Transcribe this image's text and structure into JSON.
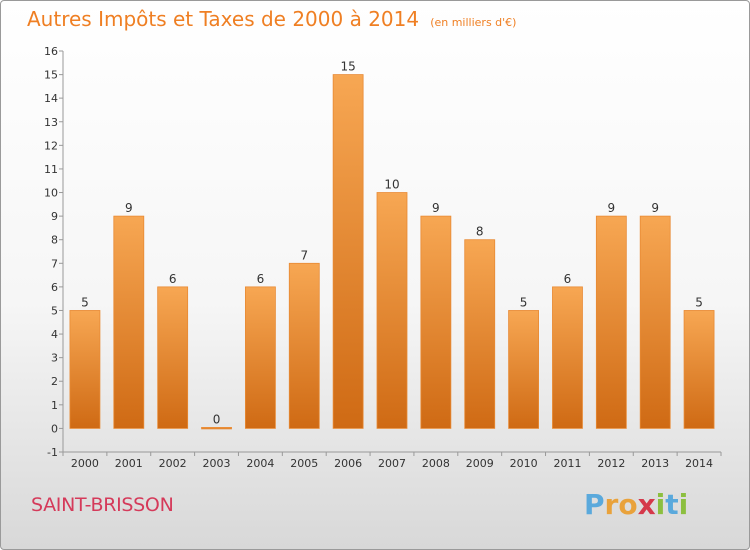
{
  "chart_data": {
    "type": "bar",
    "title": "Autres Impôts et Taxes de 2000 à 2014",
    "subtitle": "(en milliers d'€)",
    "xlabel": "",
    "ylabel": "",
    "categories": [
      "2000",
      "2001",
      "2002",
      "2003",
      "2004",
      "2005",
      "2006",
      "2007",
      "2008",
      "2009",
      "2010",
      "2011",
      "2012",
      "2013",
      "2014"
    ],
    "values": [
      5,
      9,
      6,
      0,
      6,
      7,
      15,
      10,
      9,
      8,
      5,
      6,
      9,
      9,
      5
    ],
    "data_labels": [
      "5",
      "9",
      "6",
      "0",
      "6",
      "7",
      "15",
      "10",
      "9",
      "8",
      "5",
      "6",
      "9",
      "9",
      "5"
    ],
    "ylim": [
      -1,
      16
    ],
    "yticks": [
      -1,
      0,
      1,
      2,
      3,
      4,
      5,
      6,
      7,
      8,
      9,
      10,
      11,
      12,
      13,
      14,
      15,
      16
    ],
    "grid": false,
    "legend": "none",
    "bar_color": "#f08a2c"
  },
  "footer": {
    "commune": "SAINT-BRISSON",
    "logo_letters": [
      {
        "char": "P",
        "color": "#5aa9dc"
      },
      {
        "char": "r",
        "color": "#e9a23b"
      },
      {
        "char": "o",
        "color": "#e9a23b"
      },
      {
        "char": "x",
        "color": "#d5384a"
      },
      {
        "char": "i",
        "color": "#8cbf3f"
      },
      {
        "char": "t",
        "color": "#5aa9dc"
      },
      {
        "char": "i",
        "color": "#8cbf3f"
      }
    ]
  }
}
